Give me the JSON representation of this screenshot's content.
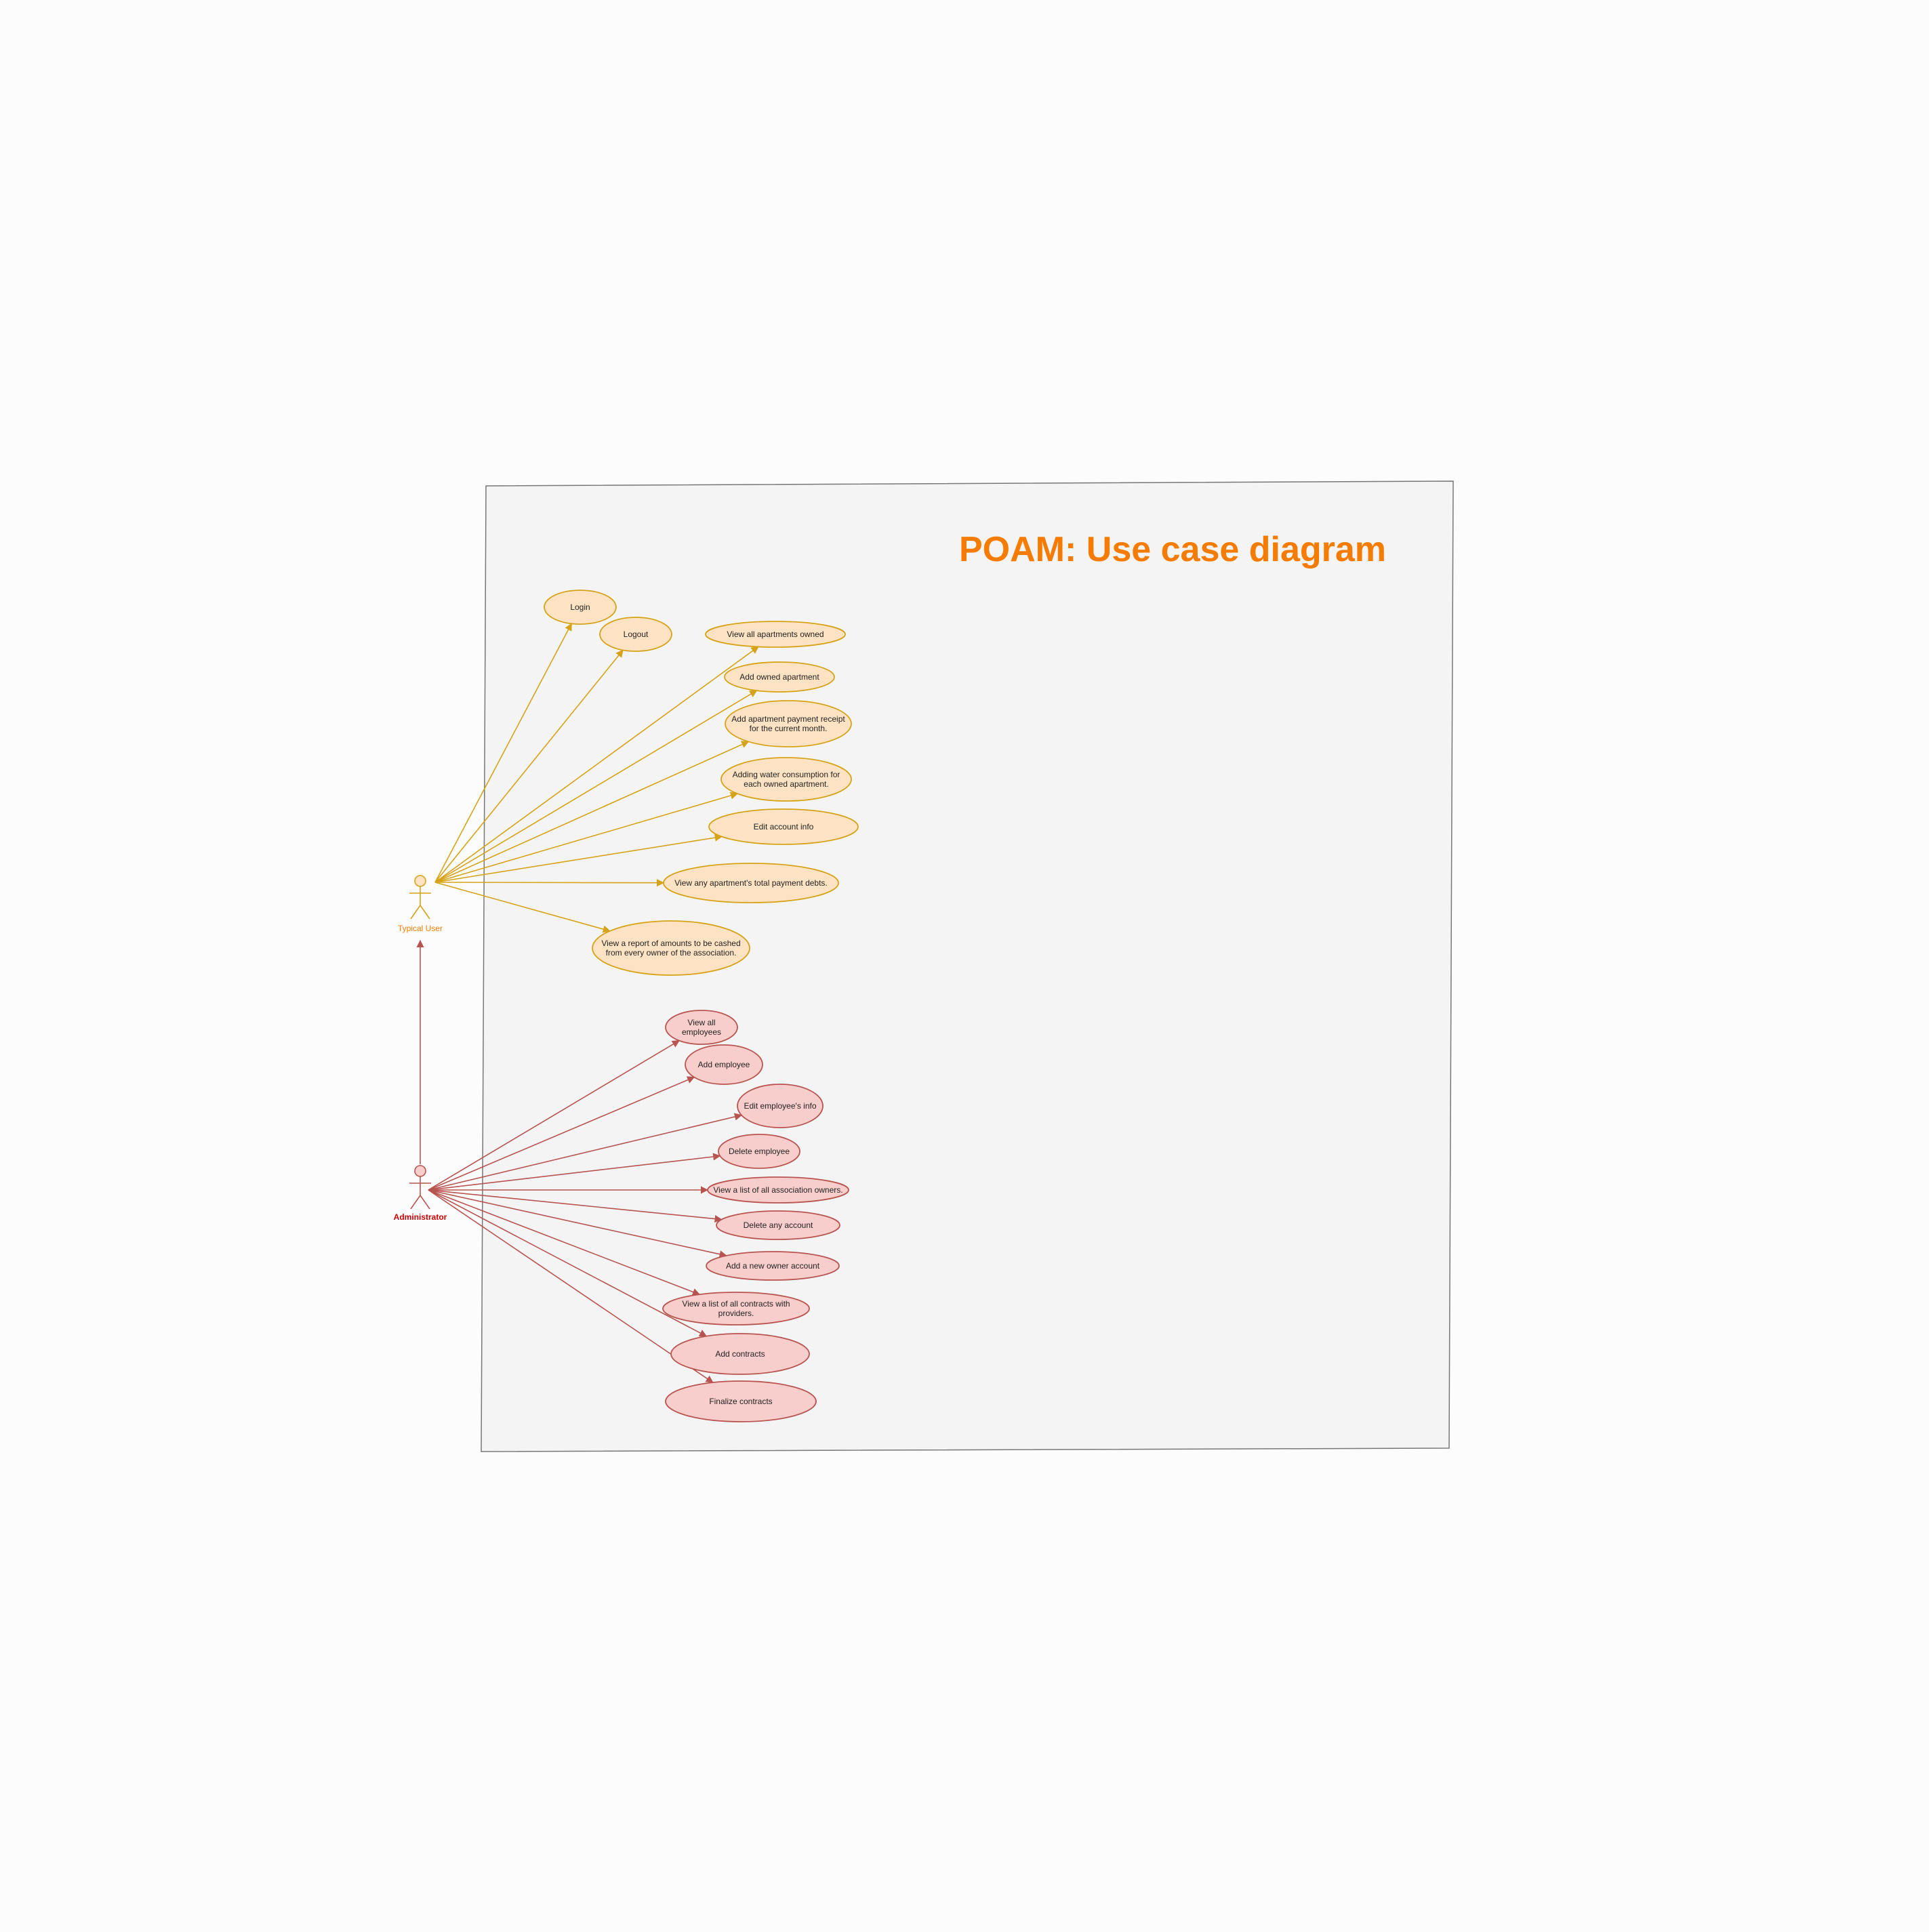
{
  "diagram": {
    "title": "POAM: Use case diagram",
    "colors": {
      "page_bg": "#fcfcfc",
      "boundary_fill": "#f4f4f4",
      "boundary_stroke": "#777777",
      "title": "#f57c00",
      "user_stroke": "#d6a318",
      "user_fill": "#fde3c4",
      "user_actor_head": "#fde3c4",
      "user_label": "#f57c00",
      "admin_stroke": "#b85450",
      "admin_fill": "#f8cecc",
      "admin_actor_head": "#f8cecc",
      "admin_label": "#cc0000",
      "text": "#222222"
    },
    "actors": [
      {
        "id": "user",
        "label": "Typical User"
      },
      {
        "id": "admin",
        "label": "Administrator"
      }
    ],
    "generalization": {
      "from": "admin",
      "to": "user"
    },
    "use_cases": [
      {
        "id": "uc-login",
        "actor": "user",
        "lines": [
          "Login"
        ]
      },
      {
        "id": "uc-logout",
        "actor": "user",
        "lines": [
          "Logout"
        ]
      },
      {
        "id": "uc-view-apartments",
        "actor": "user",
        "lines": [
          "View all apartments owned"
        ]
      },
      {
        "id": "uc-add-apartment",
        "actor": "user",
        "lines": [
          "Add owned apartment"
        ]
      },
      {
        "id": "uc-add-receipt",
        "actor": "user",
        "lines": [
          "Add apartment payment receipt",
          "for the current month."
        ]
      },
      {
        "id": "uc-water",
        "actor": "user",
        "lines": [
          "Adding water consumption for",
          "each owned apartment."
        ]
      },
      {
        "id": "uc-edit-account",
        "actor": "user",
        "lines": [
          "Edit account info"
        ]
      },
      {
        "id": "uc-view-debts",
        "actor": "user",
        "lines": [
          "View any apartment's total payment debts."
        ]
      },
      {
        "id": "uc-report",
        "actor": "user",
        "lines": [
          "View a report of amounts to be cashed",
          "from every owner of the association."
        ]
      },
      {
        "id": "uc-view-employees",
        "actor": "admin",
        "lines": [
          "View all",
          "employees"
        ]
      },
      {
        "id": "uc-add-employee",
        "actor": "admin",
        "lines": [
          "Add employee"
        ]
      },
      {
        "id": "uc-edit-employee",
        "actor": "admin",
        "lines": [
          "Edit  employee's info"
        ]
      },
      {
        "id": "uc-delete-employee",
        "actor": "admin",
        "lines": [
          "Delete employee"
        ]
      },
      {
        "id": "uc-list-owners",
        "actor": "admin",
        "lines": [
          "View a list of all association owners."
        ]
      },
      {
        "id": "uc-delete-account",
        "actor": "admin",
        "lines": [
          "Delete any account"
        ]
      },
      {
        "id": "uc-add-owner",
        "actor": "admin",
        "lines": [
          "Add a new owner account"
        ]
      },
      {
        "id": "uc-list-contracts",
        "actor": "admin",
        "lines": [
          "View a list of all  contracts with",
          "providers."
        ]
      },
      {
        "id": "uc-add-contracts",
        "actor": "admin",
        "lines": [
          "Add contracts"
        ]
      },
      {
        "id": "uc-finalize-contracts",
        "actor": "admin",
        "lines": [
          "Finalize contracts"
        ]
      }
    ]
  }
}
